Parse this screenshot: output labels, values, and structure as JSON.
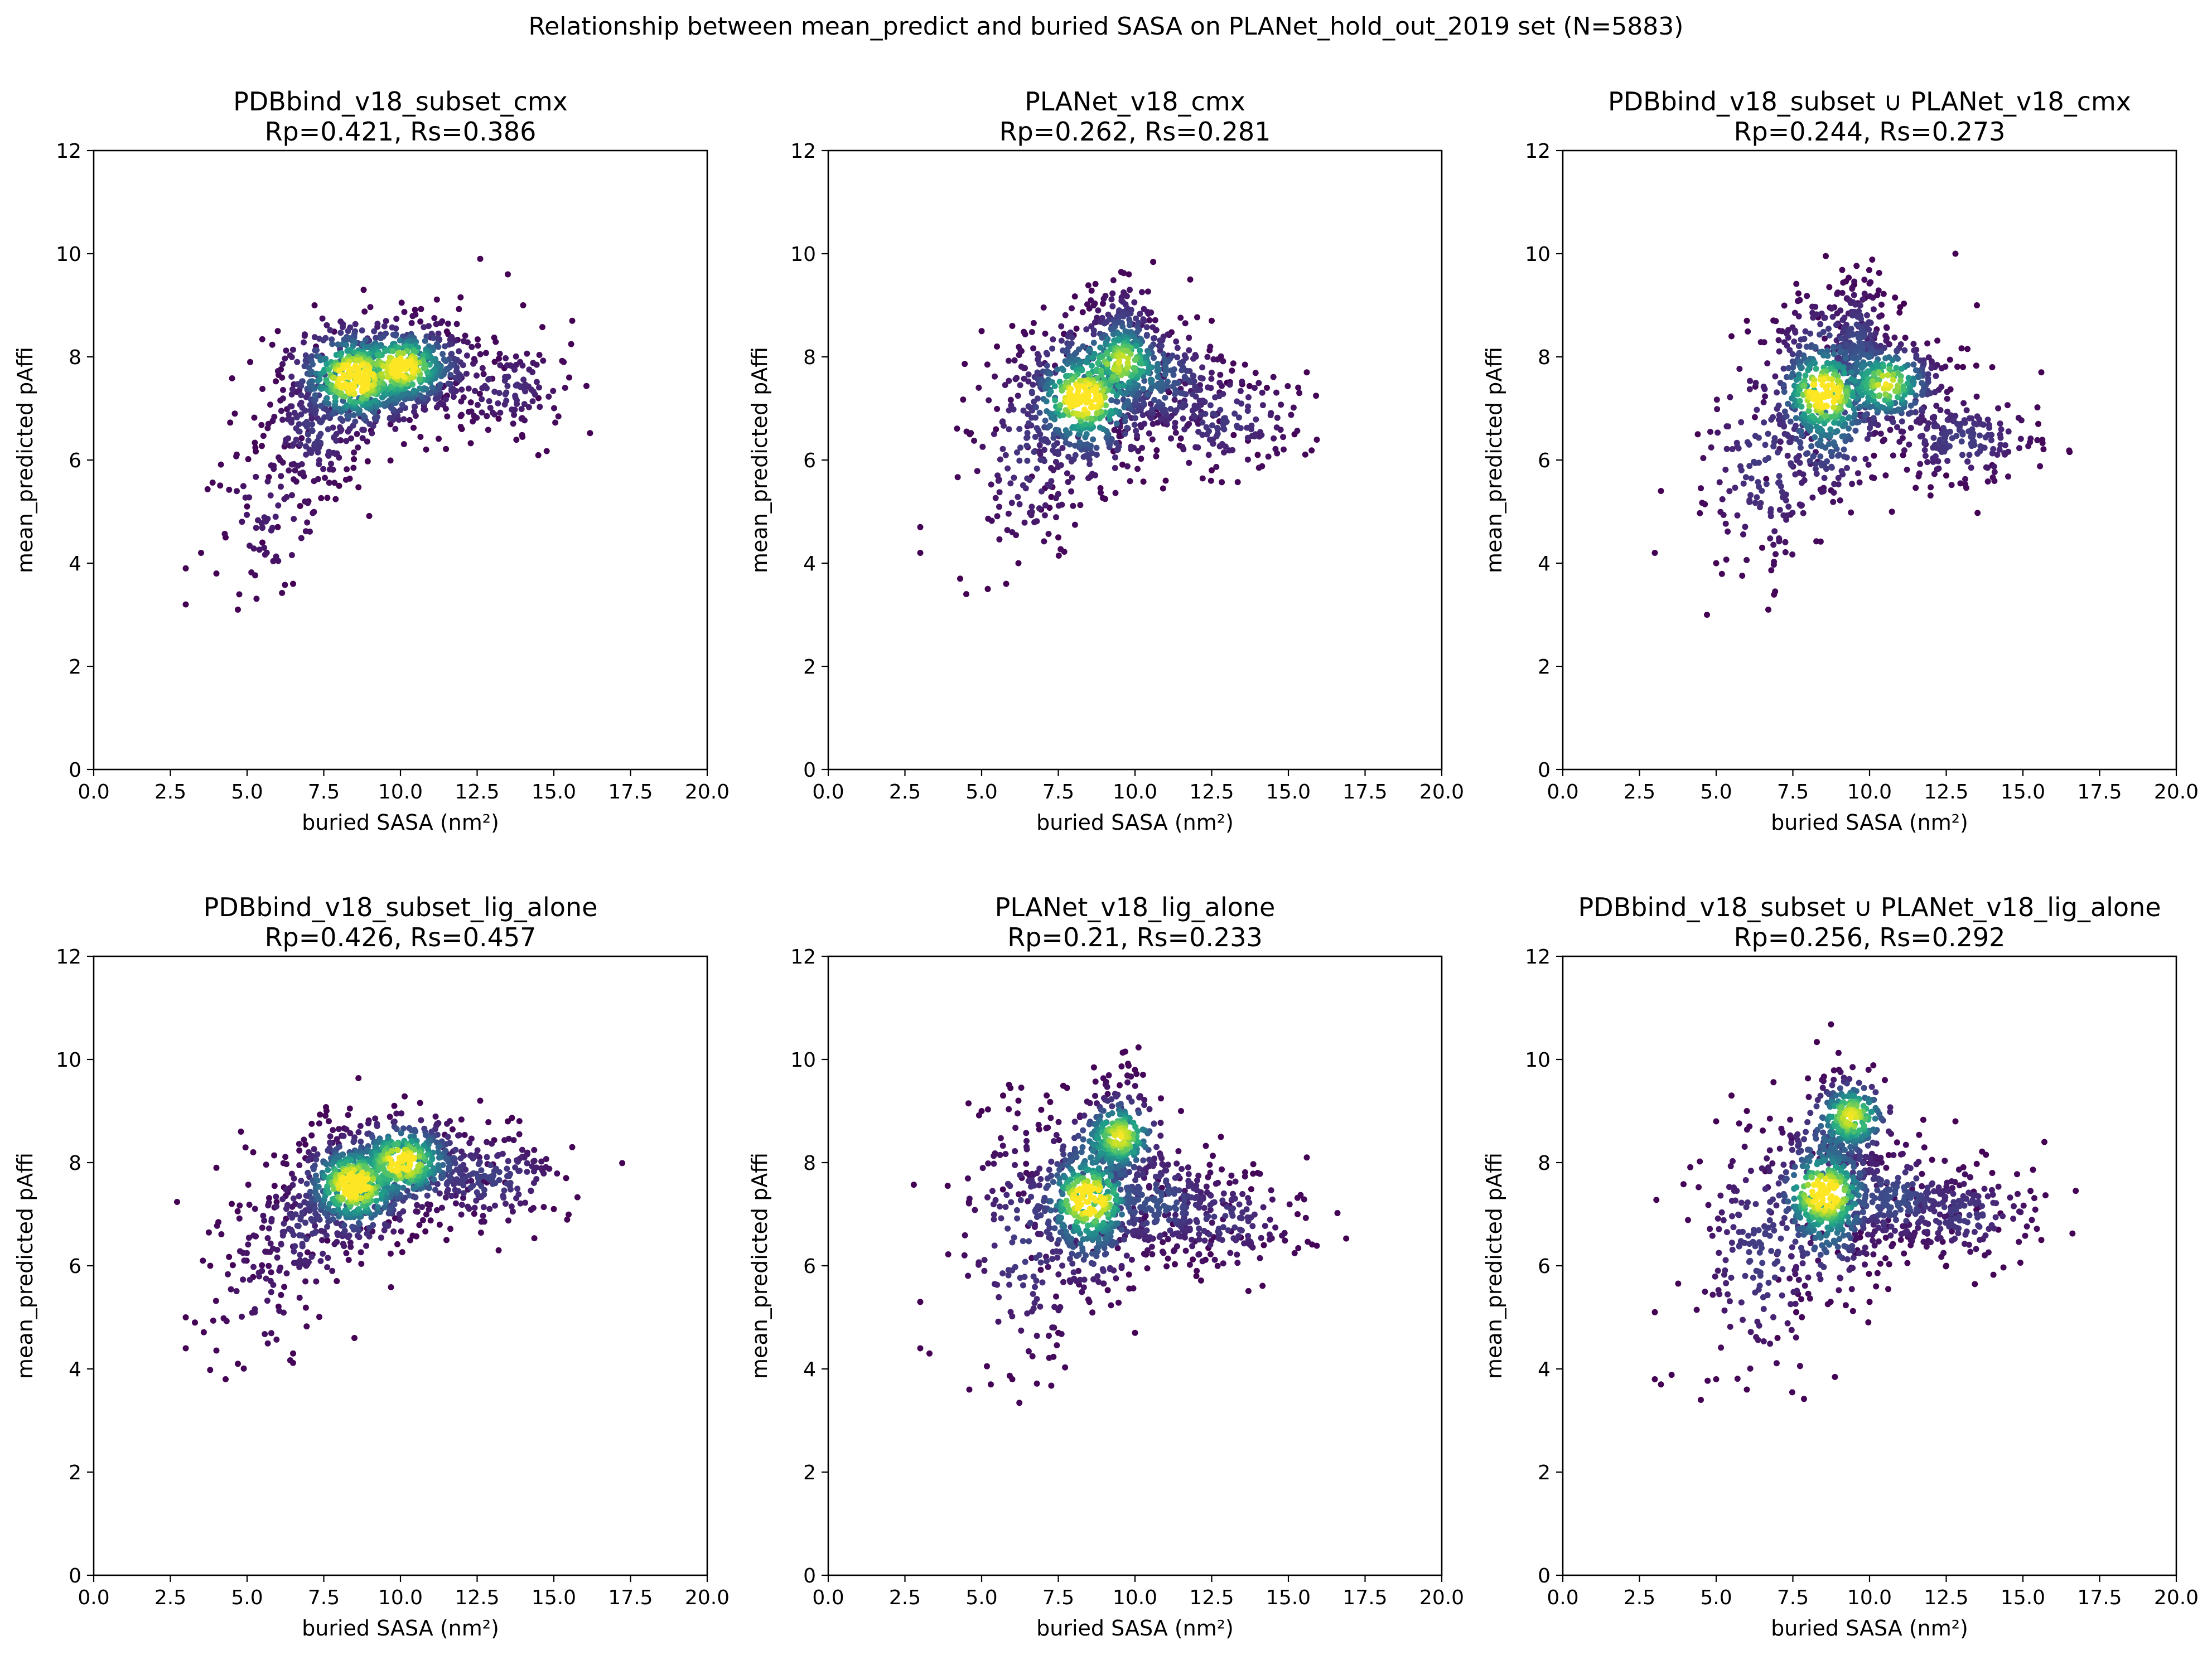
{
  "figure": {
    "suptitle": "Relationship between mean_predict and buried SASA on PLANet_hold_out_2019 set (N=5883)"
  },
  "chart_data": [
    {
      "type": "scatter",
      "title": "PDBbind_v18_subset_cmx",
      "stats": "Rp=0.421, Rs=0.386",
      "xlabel": "buried SASA (nm²)",
      "ylabel": "mean_predicted pAffi",
      "xlim": [
        0,
        20
      ],
      "ylim": [
        0,
        12
      ],
      "xticks": [
        "0.0",
        "2.5",
        "5.0",
        "7.5",
        "10.0",
        "12.5",
        "15.0",
        "17.5",
        "20.0"
      ],
      "yticks": [
        "0",
        "2",
        "4",
        "6",
        "8",
        "10",
        "12"
      ],
      "colormap": "viridis density",
      "density_peaks": [
        [
          8.5,
          7.6
        ],
        [
          10.0,
          7.8
        ]
      ],
      "sample_points": [
        [
          3.0,
          3.2
        ],
        [
          3.0,
          3.9
        ],
        [
          3.5,
          4.2
        ],
        [
          4.0,
          3.8
        ],
        [
          4.3,
          4.5
        ],
        [
          4.7,
          3.1
        ],
        [
          5.0,
          5.1
        ],
        [
          5.5,
          4.4
        ],
        [
          6.0,
          4.7
        ],
        [
          6.5,
          3.6
        ],
        [
          4.6,
          6.9
        ],
        [
          5.1,
          7.9
        ],
        [
          6.0,
          8.5
        ],
        [
          7.2,
          9.0
        ],
        [
          8.8,
          9.3
        ],
        [
          12.6,
          9.9
        ],
        [
          13.5,
          9.6
        ],
        [
          14.0,
          9.0
        ],
        [
          15.6,
          8.7
        ],
        [
          15.5,
          7.6
        ],
        [
          14.5,
          7.2
        ],
        [
          13.2,
          6.8
        ],
        [
          12.0,
          6.6
        ],
        [
          7.0,
          5.2
        ],
        [
          8.0,
          5.5
        ]
      ]
    },
    {
      "type": "scatter",
      "title": "PLANet_v18_cmx",
      "stats": "Rp=0.262, Rs=0.281",
      "xlabel": "buried SASA (nm²)",
      "ylabel": "mean_predicted pAffi",
      "xlim": [
        0,
        20
      ],
      "ylim": [
        0,
        12
      ],
      "xticks": [
        "0.0",
        "2.5",
        "5.0",
        "7.5",
        "10.0",
        "12.5",
        "15.0",
        "17.5",
        "20.0"
      ],
      "yticks": [
        "0",
        "2",
        "4",
        "6",
        "8",
        "10",
        "12"
      ],
      "colormap": "viridis density",
      "density_peaks": [
        [
          8.3,
          7.2
        ],
        [
          9.6,
          7.9
        ]
      ],
      "sample_points": [
        [
          3.0,
          4.2
        ],
        [
          3.0,
          4.7
        ],
        [
          4.5,
          3.4
        ],
        [
          4.3,
          3.7
        ],
        [
          5.2,
          3.5
        ],
        [
          5.8,
          3.6
        ],
        [
          5.0,
          8.5
        ],
        [
          5.5,
          8.2
        ],
        [
          6.0,
          8.6
        ],
        [
          9.8,
          9.6
        ],
        [
          11.8,
          9.5
        ],
        [
          12.5,
          8.7
        ],
        [
          13.0,
          7.5
        ],
        [
          14.3,
          7.4
        ],
        [
          15.6,
          7.7
        ],
        [
          15.2,
          6.5
        ],
        [
          14.0,
          6.1
        ],
        [
          12.5,
          5.8
        ],
        [
          11.0,
          5.6
        ],
        [
          7.5,
          4.5
        ],
        [
          6.2,
          4.0
        ]
      ]
    },
    {
      "type": "scatter",
      "title": "PDBbind_v18_subset ∪ PLANet_v18_cmx",
      "stats": "Rp=0.244, Rs=0.273",
      "xlabel": "buried SASA (nm²)",
      "ylabel": "mean_predicted pAffi",
      "xlim": [
        0,
        20
      ],
      "ylim": [
        0,
        12
      ],
      "xticks": [
        "0.0",
        "2.5",
        "5.0",
        "7.5",
        "10.0",
        "12.5",
        "15.0",
        "17.5",
        "20.0"
      ],
      "yticks": [
        "0",
        "2",
        "4",
        "6",
        "8",
        "10",
        "12"
      ],
      "colormap": "viridis density",
      "density_peaks": [
        [
          8.5,
          7.3
        ],
        [
          10.5,
          7.5
        ]
      ],
      "sample_points": [
        [
          3.0,
          4.2
        ],
        [
          3.2,
          5.4
        ],
        [
          4.7,
          3.0
        ],
        [
          6.7,
          3.1
        ],
        [
          4.4,
          6.5
        ],
        [
          5.5,
          8.4
        ],
        [
          6.0,
          8.7
        ],
        [
          9.5,
          9.4
        ],
        [
          12.8,
          10.0
        ],
        [
          13.5,
          9.0
        ],
        [
          14.0,
          7.8
        ],
        [
          15.6,
          7.7
        ],
        [
          15.5,
          6.7
        ],
        [
          14.0,
          5.9
        ],
        [
          12.5,
          5.7
        ],
        [
          5.0,
          4.0
        ],
        [
          6.5,
          4.3
        ]
      ]
    },
    {
      "type": "scatter",
      "title": "PDBbind_v18_subset_lig_alone",
      "stats": "Rp=0.426, Rs=0.457",
      "xlabel": "buried SASA (nm²)",
      "ylabel": "mean_predicted pAffi",
      "xlim": [
        0,
        20
      ],
      "ylim": [
        0,
        12
      ],
      "xticks": [
        "0.0",
        "2.5",
        "5.0",
        "7.5",
        "10.0",
        "12.5",
        "15.0",
        "17.5",
        "20.0"
      ],
      "yticks": [
        "0",
        "2",
        "4",
        "6",
        "8",
        "10",
        "12"
      ],
      "colormap": "viridis density",
      "density_peaks": [
        [
          8.5,
          7.6
        ],
        [
          10.0,
          8.0
        ]
      ],
      "sample_points": [
        [
          3.0,
          4.4
        ],
        [
          3.0,
          5.0
        ],
        [
          3.3,
          4.9
        ],
        [
          3.8,
          6.0
        ],
        [
          4.3,
          3.8
        ],
        [
          4.7,
          4.1
        ],
        [
          4.0,
          7.9
        ],
        [
          4.5,
          7.2
        ],
        [
          4.8,
          8.6
        ],
        [
          5.2,
          8.2
        ],
        [
          9.8,
          9.1
        ],
        [
          12.6,
          9.2
        ],
        [
          13.5,
          8.8
        ],
        [
          15.6,
          8.3
        ],
        [
          15.4,
          7.7
        ],
        [
          15.0,
          7.1
        ],
        [
          13.2,
          6.3
        ],
        [
          11.5,
          6.5
        ],
        [
          8.5,
          4.6
        ],
        [
          6.5,
          4.3
        ]
      ]
    },
    {
      "type": "scatter",
      "title": "PLANet_v18_lig_alone",
      "stats": "Rp=0.21, Rs=0.233",
      "xlabel": "buried SASA (nm²)",
      "ylabel": "mean_predicted pAffi",
      "xlim": [
        0,
        20
      ],
      "ylim": [
        0,
        12
      ],
      "xticks": [
        "0.0",
        "2.5",
        "5.0",
        "7.5",
        "10.0",
        "12.5",
        "15.0",
        "17.5",
        "20.0"
      ],
      "yticks": [
        "0",
        "2",
        "4",
        "6",
        "8",
        "10",
        "12"
      ],
      "colormap": "viridis density",
      "density_peaks": [
        [
          8.5,
          7.3
        ],
        [
          9.5,
          8.5
        ]
      ],
      "sample_points": [
        [
          3.0,
          5.3
        ],
        [
          3.0,
          4.4
        ],
        [
          3.3,
          4.3
        ],
        [
          4.6,
          3.6
        ],
        [
          5.3,
          3.7
        ],
        [
          6.0,
          3.8
        ],
        [
          5.0,
          9.0
        ],
        [
          5.7,
          9.3
        ],
        [
          6.2,
          9.2
        ],
        [
          9.5,
          9.5
        ],
        [
          11.5,
          9.0
        ],
        [
          12.8,
          8.5
        ],
        [
          14.0,
          7.8
        ],
        [
          15.6,
          8.1
        ],
        [
          15.3,
          7.0
        ],
        [
          14.2,
          6.4
        ],
        [
          12.0,
          5.8
        ],
        [
          10.0,
          4.7
        ],
        [
          7.5,
          4.7
        ]
      ]
    },
    {
      "type": "scatter",
      "title": "PDBbind_v18_subset ∪ PLANet_v18_lig_alone",
      "stats": "Rp=0.256, Rs=0.292",
      "xlabel": "buried SASA (nm²)",
      "ylabel": "mean_predicted pAffi",
      "xlim": [
        0,
        20
      ],
      "ylim": [
        0,
        12
      ],
      "xticks": [
        "0.0",
        "2.5",
        "5.0",
        "7.5",
        "10.0",
        "12.5",
        "15.0",
        "17.5",
        "20.0"
      ],
      "yticks": [
        "0",
        "2",
        "4",
        "6",
        "8",
        "10",
        "12"
      ],
      "colormap": "viridis density",
      "density_peaks": [
        [
          8.5,
          7.4
        ],
        [
          9.4,
          8.9
        ]
      ],
      "sample_points": [
        [
          3.0,
          5.1
        ],
        [
          3.0,
          3.8
        ],
        [
          3.2,
          3.7
        ],
        [
          4.5,
          3.4
        ],
        [
          5.0,
          3.8
        ],
        [
          6.0,
          3.6
        ],
        [
          5.0,
          8.8
        ],
        [
          5.5,
          9.3
        ],
        [
          6.0,
          9.0
        ],
        [
          9.0,
          9.8
        ],
        [
          10.5,
          9.6
        ],
        [
          12.8,
          8.8
        ],
        [
          14.0,
          7.8
        ],
        [
          15.7,
          8.4
        ],
        [
          15.6,
          6.5
        ],
        [
          14.2,
          6.7
        ],
        [
          12.5,
          6.0
        ],
        [
          10.0,
          5.3
        ],
        [
          7.0,
          4.6
        ]
      ]
    }
  ]
}
